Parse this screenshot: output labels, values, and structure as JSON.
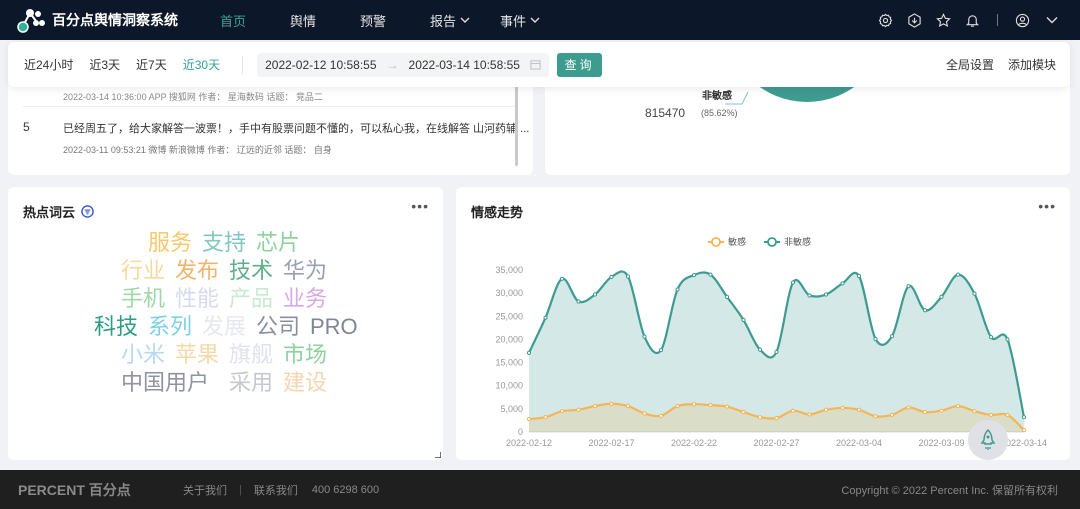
{
  "header": {
    "title": "百分点舆情洞察系统",
    "nav": [
      {
        "label": "首页",
        "active": true
      },
      {
        "label": "舆情"
      },
      {
        "label": "预警"
      },
      {
        "label": "报告",
        "dropdown": true
      },
      {
        "label": "事件",
        "dropdown": true
      }
    ],
    "icons": [
      "gear-icon",
      "download-icon",
      "star-icon",
      "bell-icon",
      "user-icon",
      "chevron-down-icon"
    ]
  },
  "filter": {
    "ranges": [
      {
        "label": "近24小时"
      },
      {
        "label": "近3天"
      },
      {
        "label": "近7天"
      },
      {
        "label": "近30天",
        "active": true
      }
    ],
    "start": "2022-02-12 10:58:55",
    "end": "2022-03-14 10:58:55",
    "arrow": "→",
    "query": "查询",
    "global_settings": "全局设置",
    "add_module": "添加模块"
  },
  "list": {
    "partial_meta": "2022-03-14 10:36:00  APP  搜狐网  作者： 星海数码  话题： 竞品二",
    "items": [
      {
        "rank": "5",
        "text": "已经周五了，给大家解答一波票！，手中有股票问题不懂的，可以私心我，在线解答 山河药辅 ...",
        "meta": "2022-03-11 09:53:21  微博  新浪微博  作者： 辽远的近邻  话题： 自身"
      }
    ]
  },
  "pie": {
    "label": "非敏感",
    "value": "815470",
    "percent": "(85.62%)",
    "color": "#3d9b90"
  },
  "wordcloud": {
    "title": "热点词云",
    "words": [
      {
        "t": "服务",
        "c": "#f7c96b"
      },
      {
        "t": "支持",
        "c": "#7fc7c0"
      },
      {
        "t": "芯片",
        "c": "#8fd19e"
      },
      {
        "t": "行业",
        "c": "#f5d9a0"
      },
      {
        "t": "发布",
        "c": "#f2b46b"
      },
      {
        "t": "技术",
        "c": "#5fb08a"
      },
      {
        "t": "华为",
        "c": "#9aa0b3"
      },
      {
        "t": "手机",
        "c": "#9fd7a5"
      },
      {
        "t": "性能",
        "c": "#d5dbef"
      },
      {
        "t": "产品",
        "c": "#c9ead0"
      },
      {
        "t": "业务",
        "c": "#d9a8e3"
      },
      {
        "t": "科技",
        "c": "#2e9b85"
      },
      {
        "t": "系列",
        "c": "#7ed0e5"
      },
      {
        "t": "发展",
        "c": "#e6e8f0"
      },
      {
        "t": "公司",
        "c": "#8a8f9e"
      },
      {
        "t": "PRO",
        "c": "#7f8597"
      },
      {
        "t": "小米",
        "c": "#b8d8f3"
      },
      {
        "t": "苹果",
        "c": "#f7d9a8"
      },
      {
        "t": "旗舰",
        "c": "#e0e3ec"
      },
      {
        "t": "中国用户",
        "c": "#8f93a3"
      },
      {
        "t": "市场",
        "c": "#8fd19e"
      },
      {
        "t": "采用",
        "c": "#c5c8d2"
      },
      {
        "t": "建设",
        "c": "#f5d5b0"
      }
    ]
  },
  "trend": {
    "title": "情感走势"
  },
  "chart_data": {
    "type": "area",
    "title": "情感走势",
    "ylim": [
      0,
      35000
    ],
    "yticks": [
      "35,000",
      "30,000",
      "25,000",
      "20,000",
      "15,000",
      "10,000",
      "5,000",
      "0"
    ],
    "xticks": [
      "2022-02-12",
      "2022-02-17",
      "2022-02-22",
      "2022-02-27",
      "2022-03-04",
      "2022-03-09",
      "2022-03-14"
    ],
    "x_start": "2022-02-12",
    "x_end": "2022-03-14",
    "legend": "top",
    "series": [
      {
        "name": "敏感",
        "color": "#f4b556",
        "values": [
          2800,
          3200,
          4500,
          4800,
          5600,
          6100,
          5600,
          4000,
          3500,
          5600,
          6000,
          5800,
          5500,
          4300,
          3200,
          3000,
          4600,
          3800,
          4800,
          5200,
          4800,
          3400,
          3700,
          5300,
          4300,
          4600,
          5600,
          4500,
          3700,
          3700,
          400
        ]
      },
      {
        "name": "非敏感",
        "color": "#3d9b90",
        "values": [
          17100,
          24700,
          33100,
          28200,
          29700,
          33500,
          33600,
          20600,
          17700,
          30800,
          33900,
          34000,
          29200,
          24200,
          17800,
          17300,
          32300,
          29500,
          29700,
          32100,
          33700,
          20100,
          20700,
          31500,
          26300,
          29200,
          34000,
          29900,
          20500,
          20000,
          3200
        ]
      }
    ]
  },
  "footer": {
    "brand": "PERCENT 百分点",
    "about": "关于我们",
    "contact": "联系我们",
    "phone": "400 6298 600",
    "copyright": "Copyright © 2022 Percent Inc. 保留所有权利"
  }
}
